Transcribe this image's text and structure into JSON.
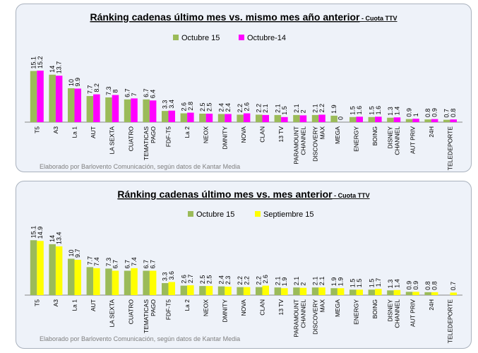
{
  "chart_data": [
    {
      "type": "bar",
      "title": "Ránking cadenas último mes vs. mismo mes año anterior",
      "title_suffix": " - Cuota TTV",
      "source": "Elaborado por Barlovento Comunicación, según datos de Kantar Media",
      "categories": [
        "T5",
        "A3",
        "La 1",
        "AUT",
        "LA SEXTA",
        "CUATRO",
        "TEMATICAS|PAGO",
        "FDF-T5",
        "La 2",
        "NEOX",
        "DMNITY",
        "NOVA",
        "CLAN",
        "13 TV",
        "PARAMOUNT|CHANNEL",
        "DISCOVERY|MAX",
        "MEGA",
        "ENERGY",
        "BOING",
        "DISNEY|CHANNEL",
        "AUT PRIV",
        "24H",
        "TELEDEPORTE"
      ],
      "series": [
        {
          "name": "Octubre 15",
          "color": "#9bbb59",
          "values": [
            15.1,
            14,
            10,
            7.7,
            7.3,
            6.7,
            6.7,
            3.3,
            2.6,
            2.5,
            2.4,
            2.2,
            2.2,
            2.1,
            2.1,
            2.1,
            1.9,
            1.5,
            1.5,
            1.3,
            0.9,
            0.8,
            0.7
          ]
        },
        {
          "name": "Octubre-14",
          "color": "#ff00ff",
          "values": [
            15.2,
            13.7,
            9.9,
            8.2,
            8,
            7,
            6.4,
            3.4,
            2.8,
            2.5,
            2.4,
            2.6,
            2.1,
            1.5,
            2,
            2.2,
            0,
            1.6,
            1.6,
            1.4,
            1,
            0.9,
            0.8
          ]
        }
      ],
      "legend": "top-center",
      "grid": false
    },
    {
      "type": "bar",
      "title": "Ránking cadenas último mes vs. mes anterior",
      "title_suffix": " - Cuota TTV",
      "source": "Elaborado por Barlovento Comunicación, según datos de Kantar Media",
      "categories": [
        "T5",
        "A3",
        "La 1",
        "AUT",
        "LA SEXTA",
        "CUATRO",
        "TEMATICAS|PAGO",
        "FDF-T5",
        "La 2",
        "NEOX",
        "DMNITY",
        "NOVA",
        "CLAN",
        "13 TV",
        "PARAMOUNT|CHANNEL",
        "DISCOVERY|MAX",
        "MEGA",
        "ENERGY",
        "BOING",
        "DISNEY|CHANNEL",
        "AUT PRIV",
        "24H",
        "TELEDEPORTE"
      ],
      "series": [
        {
          "name": "Octubre 15",
          "color": "#9bbb59",
          "values": [
            15.1,
            14,
            10,
            7.7,
            7.3,
            6.7,
            6.7,
            3.3,
            2.6,
            2.5,
            2.4,
            2.2,
            2.2,
            2.1,
            2.1,
            2.1,
            1.9,
            1.5,
            1.5,
            1.3,
            0.9,
            0.8,
            null
          ]
        },
        {
          "name": "Septiembre 15",
          "color": "#ffff00",
          "values": [
            14.9,
            13.4,
            9.7,
            7.4,
            6.7,
            7.4,
            6.7,
            3.6,
            2.7,
            2.5,
            2.3,
            2.2,
            2.6,
            1.9,
            2,
            2.1,
            1.9,
            1.5,
            1.7,
            1.4,
            0.9,
            0.8,
            0.7
          ]
        }
      ],
      "legend": "top-center",
      "grid": false
    }
  ]
}
